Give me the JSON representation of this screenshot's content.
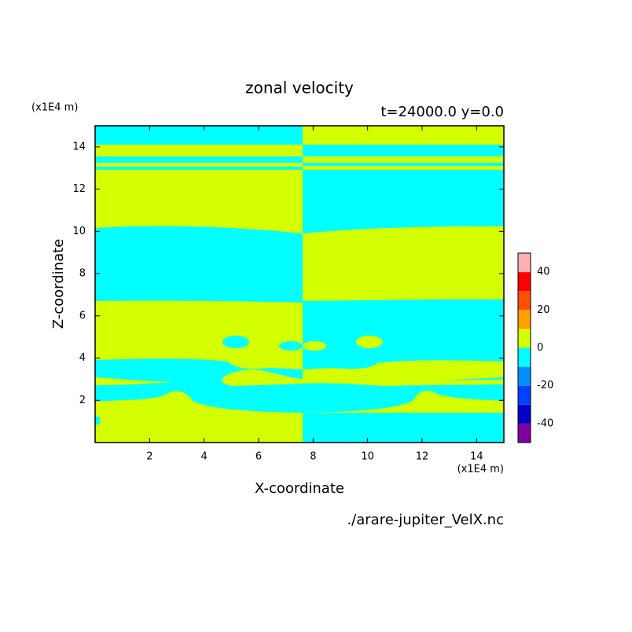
{
  "chart_data": {
    "type": "contour",
    "title": "zonal velocity",
    "subtitle": "t=24000.0 y=0.0",
    "x_label": "X-coordinate",
    "y_label": "Z-coordinate",
    "x_unit": "(x1E4 m)",
    "y_unit": "(x1E4 m)",
    "source": "./arare-jupiter_VelX.nc",
    "xlim": [
      0,
      15
    ],
    "ylim": [
      0,
      15
    ],
    "xticks": [
      2,
      4,
      6,
      8,
      10,
      12,
      14
    ],
    "yticks": [
      2,
      4,
      6,
      8,
      10,
      12,
      14
    ],
    "colorbar": {
      "levels": [
        -50,
        -40,
        -30,
        -20,
        -10,
        0,
        10,
        20,
        30,
        40,
        50
      ],
      "colors": [
        "#8000a0",
        "#0000c8",
        "#0040ff",
        "#0090ff",
        "#00ffff",
        "#d4ff00",
        "#ffa000",
        "#ff5000",
        "#ff0000",
        "#ffb0b0"
      ],
      "ticks": [
        -40,
        -20,
        0,
        20,
        40
      ]
    }
  }
}
